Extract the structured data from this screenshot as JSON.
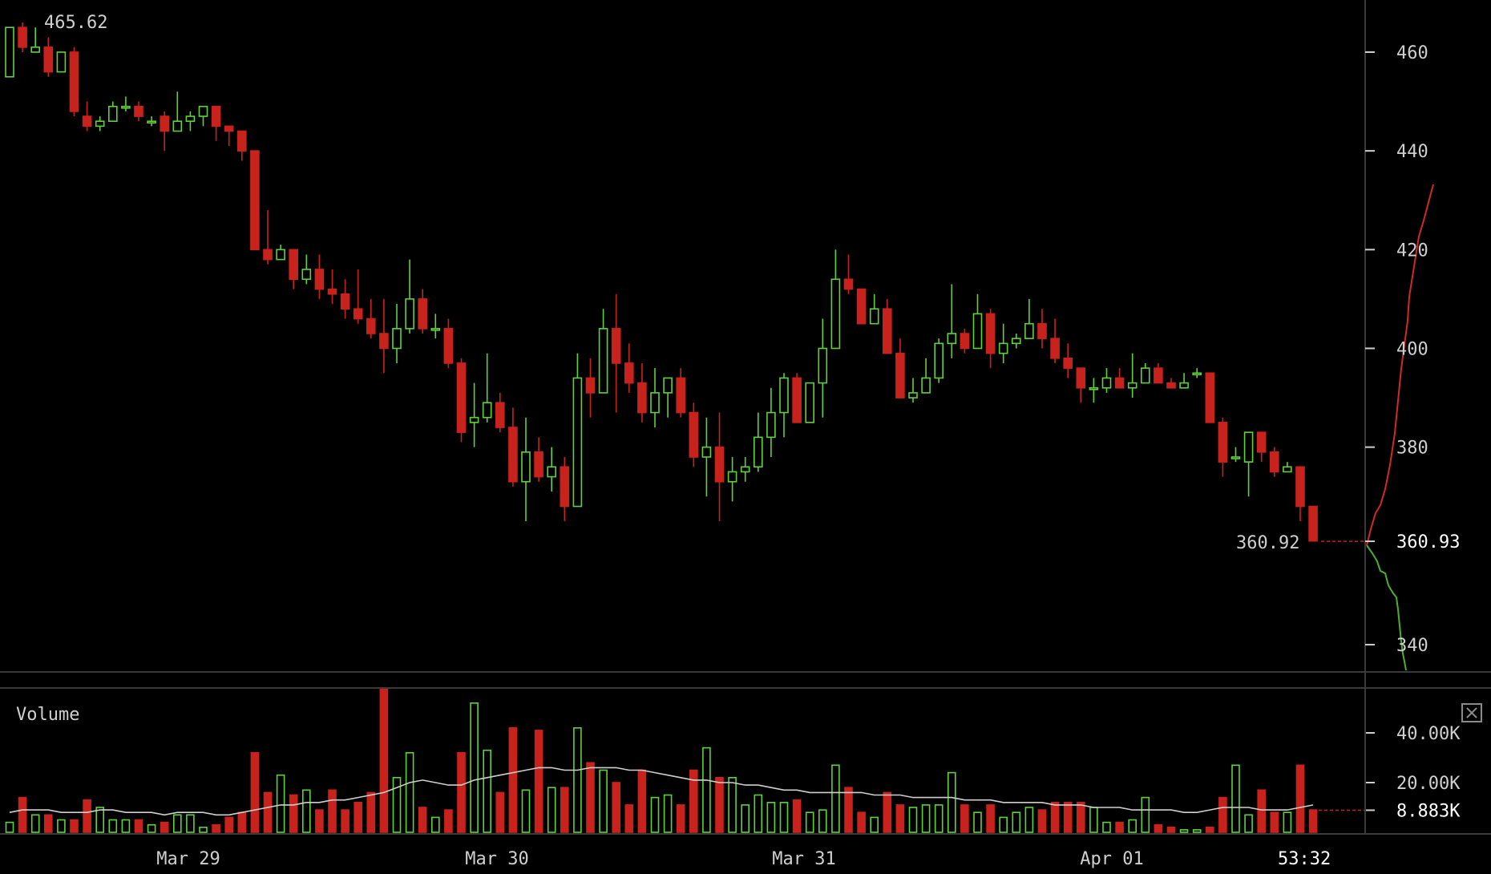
{
  "chart_data": [
    {
      "type": "candlestick",
      "title": "",
      "x": [
        "Mar 29",
        "Mar 30",
        "Mar 31",
        "Apr 01"
      ],
      "ylim": [
        333,
        470
      ],
      "y_ticks": [
        "460",
        "440",
        "420",
        "400",
        "380",
        "360.93",
        "340"
      ],
      "high_label": "465.62",
      "last_price_label": "360.92",
      "current_price_label": "360.93",
      "time_remaining": "53:32",
      "colors": {
        "up": "#5fd13a",
        "down": "#c8221c",
        "bid_depth": "#4caf2a",
        "ask_depth": "#d02a22"
      },
      "candles": [
        [
          455,
          465,
          455,
          465
        ],
        [
          465,
          461,
          466,
          460
        ],
        [
          460,
          461,
          465,
          460
        ],
        [
          461,
          456,
          463,
          455
        ],
        [
          456,
          460,
          460,
          456
        ],
        [
          460,
          448,
          461,
          447
        ],
        [
          447,
          445,
          450,
          444
        ],
        [
          445,
          446,
          447,
          444
        ],
        [
          446,
          449,
          450,
          446
        ],
        [
          449,
          449,
          451,
          448
        ],
        [
          449,
          447,
          450,
          446
        ],
        [
          446,
          446,
          447,
          445
        ],
        [
          447,
          444,
          448,
          440
        ],
        [
          444,
          446,
          452,
          444
        ],
        [
          446,
          447,
          448,
          444
        ],
        [
          447,
          449,
          449,
          445
        ],
        [
          449,
          445,
          449,
          442
        ],
        [
          445,
          444,
          445,
          441
        ],
        [
          444,
          440,
          444,
          438
        ],
        [
          440,
          420,
          440,
          420
        ],
        [
          420,
          418,
          428,
          417
        ],
        [
          418,
          420,
          421,
          418
        ],
        [
          420,
          414,
          420,
          412
        ],
        [
          414,
          416,
          419,
          413
        ],
        [
          416,
          412,
          419,
          410
        ],
        [
          412,
          411,
          416,
          409
        ],
        [
          411,
          408,
          414,
          406
        ],
        [
          408,
          406,
          416,
          405
        ],
        [
          406,
          403,
          410,
          402
        ],
        [
          403,
          400,
          410,
          395
        ],
        [
          400,
          404,
          409,
          397
        ],
        [
          404,
          410,
          418,
          403
        ],
        [
          410,
          404,
          412,
          403
        ],
        [
          404,
          404,
          407,
          402
        ],
        [
          404,
          397,
          406,
          396
        ],
        [
          397,
          383,
          398,
          381
        ],
        [
          385,
          386,
          393,
          380
        ],
        [
          386,
          389,
          399,
          385
        ],
        [
          389,
          384,
          391,
          383
        ],
        [
          384,
          373,
          388,
          372
        ],
        [
          373,
          379,
          386,
          365
        ],
        [
          379,
          374,
          382,
          373
        ],
        [
          374,
          376,
          380,
          371
        ],
        [
          376,
          368,
          378,
          365
        ],
        [
          368,
          394,
          399,
          368
        ],
        [
          394,
          391,
          398,
          386
        ],
        [
          391,
          404,
          408,
          391
        ],
        [
          404,
          397,
          411,
          387
        ],
        [
          397,
          393,
          401,
          391
        ],
        [
          393,
          387,
          397,
          385
        ],
        [
          387,
          391,
          396,
          384
        ],
        [
          391,
          394,
          394,
          386
        ],
        [
          394,
          387,
          396,
          386
        ],
        [
          387,
          378,
          389,
          376
        ],
        [
          378,
          380,
          386,
          370
        ],
        [
          380,
          373,
          387,
          365
        ],
        [
          373,
          375,
          378,
          369
        ],
        [
          375,
          376,
          378,
          373
        ],
        [
          376,
          382,
          387,
          375
        ],
        [
          382,
          387,
          392,
          378
        ],
        [
          387,
          394,
          395,
          382
        ],
        [
          394,
          385,
          395,
          385
        ],
        [
          385,
          393,
          393,
          386
        ],
        [
          393,
          400,
          406,
          386
        ],
        [
          400,
          414,
          420,
          408
        ],
        [
          414,
          412,
          419,
          411
        ],
        [
          412,
          405,
          412,
          405
        ],
        [
          405,
          408,
          411,
          406
        ],
        [
          408,
          399,
          410,
          399
        ],
        [
          399,
          390,
          402,
          390
        ],
        [
          390,
          391,
          394,
          389
        ],
        [
          391,
          394,
          398,
          393
        ],
        [
          394,
          401,
          402,
          393
        ],
        [
          401,
          403,
          413,
          398
        ],
        [
          403,
          400,
          404,
          399
        ],
        [
          400,
          407,
          411,
          400
        ],
        [
          407,
          399,
          408,
          396
        ],
        [
          399,
          401,
          405,
          397
        ],
        [
          401,
          402,
          403,
          400
        ],
        [
          402,
          405,
          410,
          402
        ],
        [
          405,
          402,
          408,
          400
        ],
        [
          402,
          398,
          406,
          397
        ],
        [
          398,
          396,
          401,
          394
        ],
        [
          396,
          392,
          396,
          389
        ],
        [
          392,
          392,
          394,
          389
        ],
        [
          392,
          394,
          396,
          391
        ],
        [
          394,
          392,
          396,
          392
        ],
        [
          392,
          393,
          399,
          390
        ],
        [
          393,
          396,
          397,
          393
        ],
        [
          396,
          393,
          397,
          393
        ],
        [
          393,
          392,
          394,
          393
        ],
        [
          392,
          393,
          395,
          393
        ],
        [
          395,
          395,
          396,
          394
        ],
        [
          395,
          385,
          395,
          385
        ],
        [
          385,
          377,
          386,
          374
        ],
        [
          378,
          378,
          380,
          377
        ],
        [
          377,
          383,
          383,
          370
        ],
        [
          383,
          379,
          383,
          377
        ],
        [
          379,
          375,
          380,
          374
        ],
        [
          375,
          376,
          377,
          375
        ],
        [
          376,
          368,
          376,
          365
        ],
        [
          368,
          361,
          368,
          361
        ]
      ],
      "volume": {
        "label": "Volume",
        "y_ticks": [
          "40.00K",
          "20.00K",
          "8.883K"
        ],
        "values": [
          4,
          14,
          7,
          7,
          5,
          5,
          13,
          10,
          5,
          5,
          5,
          3,
          4,
          7,
          7,
          2,
          3,
          6,
          8,
          32,
          16,
          23,
          15,
          17,
          9,
          17,
          9,
          12,
          16,
          60,
          22,
          32,
          10,
          6,
          9,
          32,
          52,
          33,
          16,
          42,
          17,
          41,
          18,
          18,
          42,
          28,
          25,
          20,
          11,
          25,
          14,
          15,
          11,
          25,
          34,
          22,
          22,
          11,
          15,
          12,
          12,
          13,
          8,
          9,
          27,
          18,
          8,
          6,
          16,
          11,
          10,
          11,
          11,
          24,
          11,
          8,
          11,
          6,
          8,
          10,
          9,
          12,
          12,
          12,
          10,
          4,
          4,
          5,
          14,
          3,
          2,
          1,
          1,
          2,
          14,
          27,
          7,
          17,
          8,
          8,
          27,
          9
        ],
        "ma": [
          8,
          9,
          9,
          9,
          8,
          8,
          8,
          9,
          9,
          8,
          8,
          8,
          7,
          8,
          8,
          8,
          7,
          7,
          8,
          9,
          10,
          11,
          11,
          12,
          12,
          13,
          13,
          14,
          15,
          16,
          18,
          20,
          21,
          20,
          19,
          19,
          21,
          22,
          23,
          24,
          25,
          26,
          26,
          25,
          25,
          26,
          26,
          26,
          25,
          25,
          24,
          23,
          22,
          21,
          21,
          20,
          20,
          19,
          19,
          18,
          17,
          17,
          16,
          16,
          16,
          16,
          16,
          15,
          15,
          15,
          14,
          14,
          14,
          14,
          13,
          13,
          13,
          12,
          12,
          12,
          12,
          11,
          11,
          11,
          10,
          10,
          10,
          9,
          9,
          9,
          9,
          8,
          8,
          9,
          10,
          10,
          10,
          9,
          9,
          9,
          10,
          11
        ]
      }
    }
  ]
}
